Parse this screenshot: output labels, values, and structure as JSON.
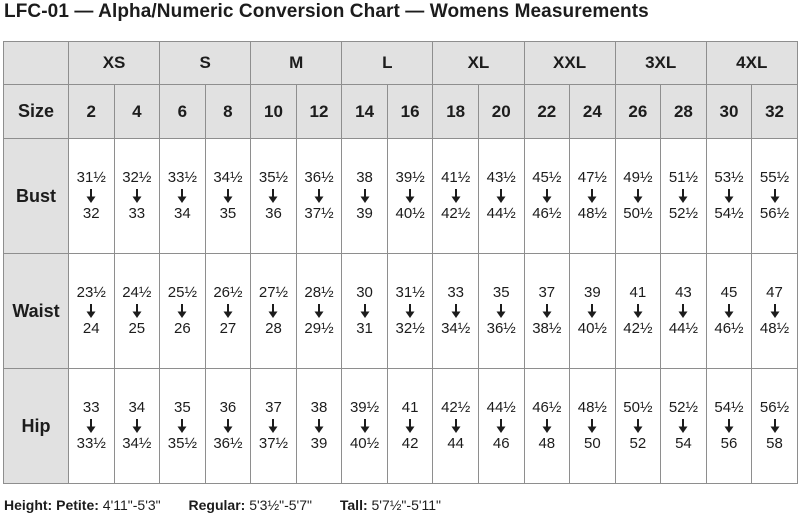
{
  "title": "LFC-01 — Alpha/Numeric Conversion Chart — Womens Measurements",
  "alpha_sizes": [
    "XS",
    "S",
    "M",
    "L",
    "XL",
    "XXL",
    "3XL",
    "4XL"
  ],
  "size_label": "Size",
  "numeric_sizes": [
    "2",
    "4",
    "6",
    "8",
    "10",
    "12",
    "14",
    "16",
    "18",
    "20",
    "22",
    "24",
    "26",
    "28",
    "30",
    "32"
  ],
  "rows": [
    {
      "label": "Bust",
      "from": [
        "31½",
        "32½",
        "33½",
        "34½",
        "35½",
        "36½",
        "38",
        "39½",
        "41½",
        "43½",
        "45½",
        "47½",
        "49½",
        "51½",
        "53½",
        "55½"
      ],
      "to": [
        "32",
        "33",
        "34",
        "35",
        "36",
        "37½",
        "39",
        "40½",
        "42½",
        "44½",
        "46½",
        "48½",
        "50½",
        "52½",
        "54½",
        "56½"
      ]
    },
    {
      "label": "Waist",
      "from": [
        "23½",
        "24½",
        "25½",
        "26½",
        "27½",
        "28½",
        "30",
        "31½",
        "33",
        "35",
        "37",
        "39",
        "41",
        "43",
        "45",
        "47"
      ],
      "to": [
        "24",
        "25",
        "26",
        "27",
        "28",
        "29½",
        "31",
        "32½",
        "34½",
        "36½",
        "38½",
        "40½",
        "42½",
        "44½",
        "46½",
        "48½"
      ]
    },
    {
      "label": "Hip",
      "from": [
        "33",
        "34",
        "35",
        "36",
        "37",
        "38",
        "39½",
        "41",
        "42½",
        "44½",
        "46½",
        "48½",
        "50½",
        "52½",
        "54½",
        "56½"
      ],
      "to": [
        "33½",
        "34½",
        "35½",
        "36½",
        "37½",
        "39",
        "40½",
        "42",
        "44",
        "46",
        "48",
        "50",
        "52",
        "54",
        "56",
        "58"
      ]
    }
  ],
  "footer": {
    "petite_label": "Height: Petite:",
    "petite_value": "4'11\"-5'3\"",
    "regular_label": "Regular:",
    "regular_value": "5'3½\"-5'7\"",
    "tall_label": "Tall:",
    "tall_value": "5'7½\"-5'11\""
  },
  "colors": {
    "header_fill": "#e1e1e1",
    "grid_line": "#8e8e8e",
    "text": "#1c1c1c"
  },
  "icons": {
    "range_arrow": "arrow-down-icon"
  }
}
